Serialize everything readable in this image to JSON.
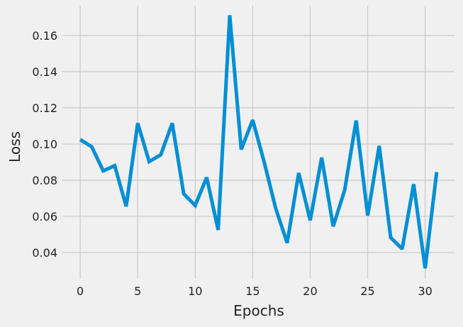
{
  "chart_data": {
    "type": "line",
    "title": "",
    "xlabel": "Epochs",
    "ylabel": "Loss",
    "grid": true,
    "xlim": [
      -1.55,
      32.55
    ],
    "ylim": [
      0.0255,
      0.1765
    ],
    "x_ticks": [
      0,
      5,
      10,
      15,
      20,
      25,
      30
    ],
    "y_ticks": [
      0.04,
      0.06,
      0.08,
      0.1,
      0.12,
      0.14,
      0.16
    ],
    "y_tick_labels": [
      "0.04",
      "0.06",
      "0.08",
      "0.10",
      "0.12",
      "0.14",
      "0.16"
    ],
    "colors": {
      "line": "#008fd5",
      "background": "#f0f0f0",
      "grid": "#cbcbcb"
    },
    "series": [
      {
        "x": [
          0,
          1,
          2,
          3,
          4,
          5,
          6,
          7,
          8,
          9,
          10,
          11,
          12,
          13,
          14,
          15,
          16,
          17,
          18,
          19,
          20,
          21,
          22,
          23,
          24,
          25,
          26,
          27,
          28,
          29,
          30,
          31
        ],
        "values": [
          0.1025,
          0.0985,
          0.0852,
          0.088,
          0.0655,
          0.1115,
          0.0903,
          0.094,
          0.1115,
          0.0725,
          0.066,
          0.0815,
          0.0525,
          0.1712,
          0.097,
          0.1133,
          0.09,
          0.0645,
          0.0453,
          0.084,
          0.0578,
          0.0925,
          0.0545,
          0.0745,
          0.113,
          0.0605,
          0.099,
          0.0483,
          0.042,
          0.0778,
          0.0313,
          0.0845
        ]
      }
    ]
  }
}
